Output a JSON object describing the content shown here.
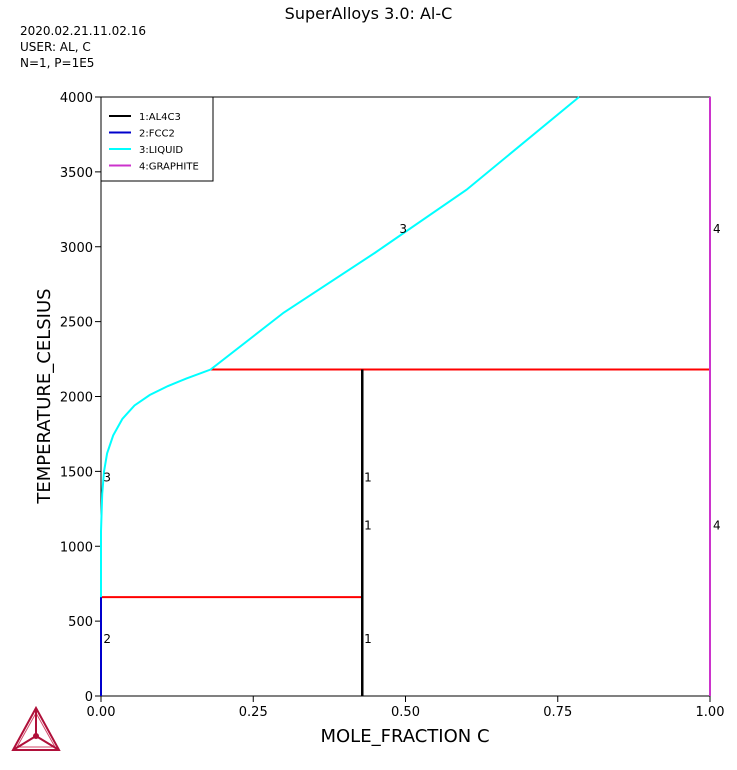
{
  "header": {
    "title": "SuperAlloys 3.0: Al-C",
    "meta_lines": [
      "2020.02.21.11.02.16",
      "USER: AL, C",
      "N=1, P=1E5"
    ]
  },
  "chart_data": {
    "type": "line",
    "xlabel": "MOLE_FRACTION C",
    "ylabel": "TEMPERATURE_CELSIUS",
    "xlim": [
      0,
      1
    ],
    "ylim": [
      0,
      4000
    ],
    "xticks": [
      0,
      0.25,
      0.5,
      0.75,
      1
    ],
    "xtick_labels": [
      "0.00",
      "0.25",
      "0.50",
      "0.75",
      "1.00"
    ],
    "yticks": [
      0,
      500,
      1000,
      1500,
      2000,
      2500,
      3000,
      3500,
      4000
    ],
    "ytick_labels": [
      "0",
      "500",
      "1000",
      "1500",
      "2000",
      "2500",
      "3000",
      "3500",
      "4000"
    ],
    "legend": {
      "placement": "top-left",
      "entries": [
        {
          "label": "1:AL4C3",
          "color": "#000000"
        },
        {
          "label": "2:FCC2",
          "color": "#0000cc"
        },
        {
          "label": "3:LIQUID",
          "color": "#00ffff"
        },
        {
          "label": "4:GRAPHITE",
          "color": "#cc33cc"
        }
      ]
    },
    "series": [
      {
        "name": "1:AL4C3",
        "color": "#000000",
        "x": [
          0.429,
          0.429
        ],
        "y": [
          0,
          2180
        ]
      },
      {
        "name": "2:FCC2",
        "color": "#0000cc",
        "x": [
          0.0,
          0.0
        ],
        "y": [
          0,
          660
        ]
      },
      {
        "name": "3:LIQUID",
        "color": "#00ffff",
        "x": [
          0.0,
          0.0,
          0.002,
          0.005,
          0.01,
          0.02,
          0.035,
          0.055,
          0.08,
          0.11,
          0.14,
          0.18,
          0.3,
          0.45,
          0.6,
          0.785
        ],
        "y": [
          660,
          1100,
          1350,
          1500,
          1620,
          1740,
          1850,
          1940,
          2010,
          2070,
          2120,
          2180,
          2560,
          2960,
          3380,
          4000
        ]
      },
      {
        "name": "4:GRAPHITE",
        "color": "#cc33cc",
        "x": [
          1.0,
          1.0
        ],
        "y": [
          0,
          4000
        ]
      }
    ],
    "invariants": [
      {
        "color": "#ff0000",
        "x": [
          0.18,
          1.0
        ],
        "y": [
          2180,
          2180
        ]
      },
      {
        "color": "#ff0000",
        "x": [
          0.0,
          0.429
        ],
        "y": [
          660,
          660
        ]
      }
    ],
    "curve_labels": [
      {
        "text": "3",
        "x": 0.49,
        "y": 3120
      },
      {
        "text": "4",
        "x": 1.005,
        "y": 3120
      },
      {
        "text": "3",
        "x": 0.004,
        "y": 1460
      },
      {
        "text": "1",
        "x": 0.432,
        "y": 1460
      },
      {
        "text": "1",
        "x": 0.432,
        "y": 1140
      },
      {
        "text": "4",
        "x": 1.005,
        "y": 1140
      },
      {
        "text": "2",
        "x": 0.004,
        "y": 380
      },
      {
        "text": "1",
        "x": 0.432,
        "y": 380
      }
    ]
  }
}
